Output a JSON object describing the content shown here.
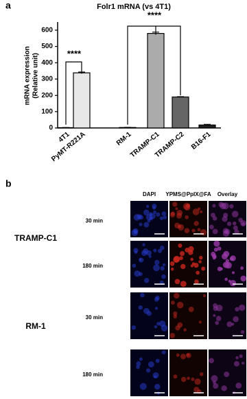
{
  "panel_labels": [
    "a",
    "b"
  ],
  "chart_data": {
    "type": "bar",
    "title": "Folr1 mRNA (vs 4T1)",
    "ylabel": [
      "mRNA expression",
      "(Relative unit)"
    ],
    "categories": [
      "4T1",
      "PyMT-R221A",
      "RM-1",
      "TRAMP-C1",
      "TRAMP-C2",
      "B16-F1"
    ],
    "values": [
      2,
      338,
      3,
      580,
      190,
      18
    ],
    "errors": [
      1,
      5,
      1,
      8,
      2,
      4
    ],
    "colors": [
      "#ffffff",
      "#e8e8e8",
      "#ffffff",
      "#ababab",
      "#666666",
      "#222222"
    ],
    "ylim": [
      0,
      650
    ],
    "yticks": [
      0,
      100,
      200,
      300,
      400,
      500,
      600
    ],
    "annotations": [
      "****",
      "****"
    ]
  },
  "panel_b": {
    "columns": [
      "DAPI",
      "YPMS@PpIX@FA",
      "Overlay"
    ],
    "groups": [
      {
        "name": "TRAMP-C1",
        "times": [
          "30 min",
          "180 min"
        ]
      },
      {
        "name": "RM-1",
        "times": [
          "30 min",
          "180 min"
        ]
      }
    ]
  }
}
